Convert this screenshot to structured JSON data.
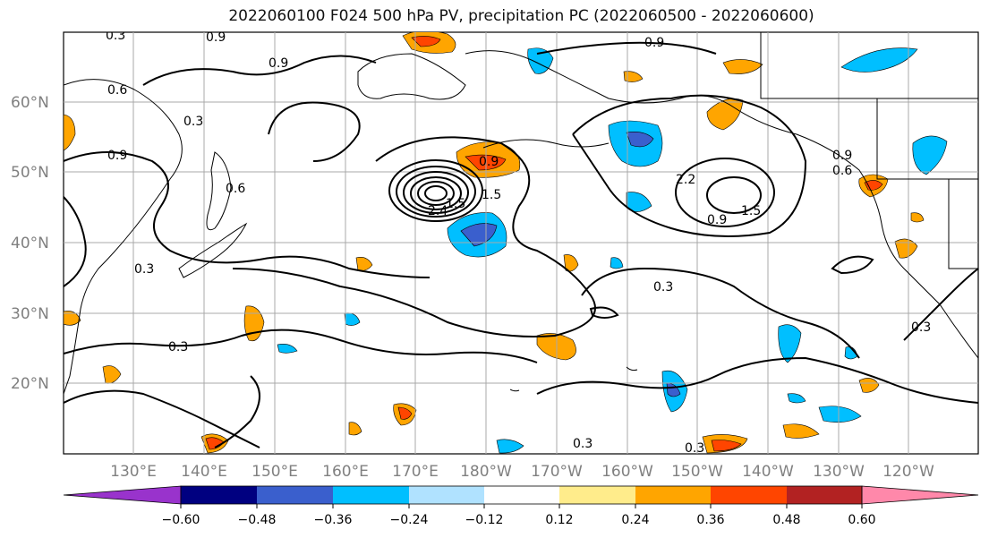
{
  "title": "2022060100 F024 500 hPa PV, precipitation PC (2022060500 - 2022060600)",
  "lat_labels": [
    "60°N",
    "50°N",
    "40°N",
    "30°N",
    "20°N"
  ],
  "lon_labels": [
    "130°E",
    "140°E",
    "150°E",
    "160°E",
    "170°E",
    "180°W",
    "170°W",
    "160°W",
    "150°W",
    "140°W",
    "130°W",
    "120°W"
  ],
  "contour_labels": [
    "0.3",
    "0.9",
    "0.6",
    "0.9",
    "0.3",
    "0.9",
    "0.6",
    "0.9",
    "0.3",
    "0.3",
    "0.9",
    "0.9",
    "2.2",
    "1.5",
    "0.9",
    "0.6",
    "0.3",
    "0.3",
    "0.3",
    "0.3",
    "2.4",
    "1.5",
    "1.5"
  ],
  "colorbar": {
    "ticks": [
      "−0.60",
      "−0.48",
      "−0.36",
      "−0.24",
      "−0.12",
      "0.12",
      "0.24",
      "0.36",
      "0.48",
      "0.60"
    ],
    "colors": [
      "#9933cc",
      "#000080",
      "#3a5fcd",
      "#00bfff",
      "#b0e2ff",
      "#ffffff",
      "#ffec8b",
      "#ffa500",
      "#ff4500",
      "#b22222",
      "#ff88aa"
    ]
  }
}
